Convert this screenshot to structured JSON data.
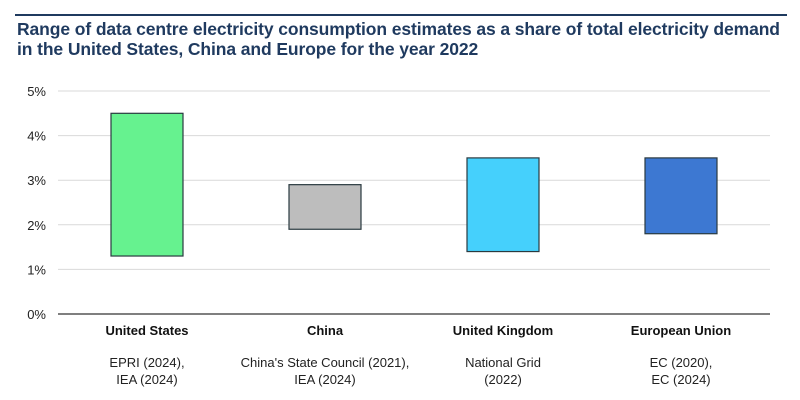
{
  "chart_data": {
    "type": "bar",
    "subtype": "floating-range",
    "title": "Range of data centre electricity consumption estimates as a share of total electricity demand in the United States, China and Europe for the year 2022",
    "xlabel": "",
    "ylabel": "",
    "ylim": [
      0,
      5
    ],
    "yticks": [
      0,
      1,
      2,
      3,
      4,
      5
    ],
    "ytick_labels": [
      "0%",
      "1%",
      "2%",
      "3%",
      "4%",
      "5%"
    ],
    "grid": true,
    "legend": "none",
    "categories": [
      "United States",
      "China",
      "United Kingdom",
      "European Union"
    ],
    "sources": [
      [
        "EPRI (2024),",
        "IEA (2024)"
      ],
      [
        "China's State Council (2021),",
        "IEA (2024)"
      ],
      [
        "National Grid",
        "(2022)"
      ],
      [
        "EC (2020),",
        "EC (2024)"
      ]
    ],
    "ranges": [
      {
        "name": "United States",
        "low": 1.3,
        "high": 4.5
      },
      {
        "name": "China",
        "low": 1.9,
        "high": 2.9
      },
      {
        "name": "United Kingdom",
        "low": 1.4,
        "high": 3.5
      },
      {
        "name": "European Union",
        "low": 1.8,
        "high": 3.5
      }
    ],
    "colors": [
      "#66f28f",
      "#bdbdbd",
      "#45d0fc",
      "#3d78d2"
    ]
  }
}
